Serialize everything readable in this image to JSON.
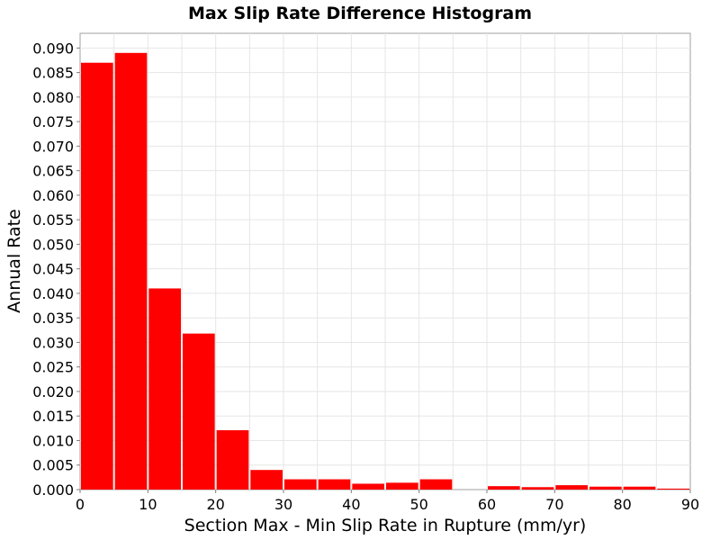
{
  "chart_data": {
    "type": "bar",
    "title": "Max Slip Rate Difference Histogram",
    "xlabel": "Section Max - Min Slip Rate in Rupture (mm/yr)",
    "ylabel": "Annual Rate",
    "xlim": [
      0,
      90
    ],
    "ylim": [
      0,
      0.093
    ],
    "grid": true,
    "bar_color": "#ff0000",
    "bin_width": 5,
    "bins": [
      {
        "x": 2.5,
        "value": 0.087
      },
      {
        "x": 7.5,
        "value": 0.089
      },
      {
        "x": 12.5,
        "value": 0.041
      },
      {
        "x": 17.5,
        "value": 0.0318
      },
      {
        "x": 22.5,
        "value": 0.0121
      },
      {
        "x": 27.5,
        "value": 0.004
      },
      {
        "x": 32.5,
        "value": 0.0021
      },
      {
        "x": 37.5,
        "value": 0.0021
      },
      {
        "x": 42.5,
        "value": 0.0012
      },
      {
        "x": 47.5,
        "value": 0.0014
      },
      {
        "x": 52.5,
        "value": 0.0021
      },
      {
        "x": 57.5,
        "value": 0.0
      },
      {
        "x": 62.5,
        "value": 0.0007
      },
      {
        "x": 67.5,
        "value": 0.0005
      },
      {
        "x": 72.5,
        "value": 0.0009
      },
      {
        "x": 77.5,
        "value": 0.0006
      },
      {
        "x": 82.5,
        "value": 0.0006
      },
      {
        "x": 87.5,
        "value": 0.0002
      }
    ],
    "x_ticks": [
      "0",
      "10",
      "20",
      "30",
      "40",
      "50",
      "60",
      "70",
      "80",
      "90"
    ],
    "y_ticks": [
      "0.000",
      "0.005",
      "0.010",
      "0.015",
      "0.020",
      "0.025",
      "0.030",
      "0.035",
      "0.040",
      "0.045",
      "0.050",
      "0.055",
      "0.060",
      "0.065",
      "0.070",
      "0.075",
      "0.080",
      "0.085",
      "0.090"
    ]
  }
}
